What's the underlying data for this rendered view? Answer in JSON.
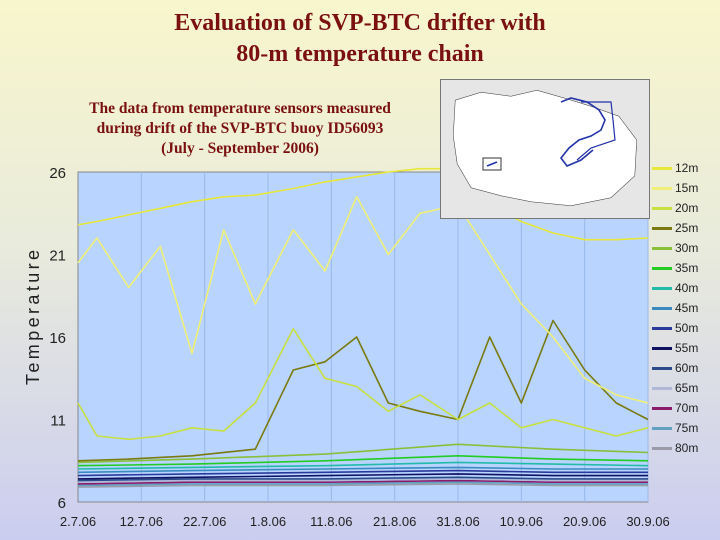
{
  "title_line1": "Evaluation of SVP-BTC drifter with",
  "title_line2": "80-m temperature chain",
  "subtitle_line1": "The data from temperature sensors measured",
  "subtitle_line2": "during drift of the SVP-BTC buoy ID56093",
  "subtitle_line3": "(July - September 2006)",
  "chart_data": {
    "type": "line",
    "ylabel": "Temperature",
    "xlabel": "",
    "x_ticks": [
      "2.7.06",
      "12.7.06",
      "22.7.06",
      "1.8.06",
      "11.8.06",
      "21.8.06",
      "31.8.06",
      "10.9.06",
      "20.9.06",
      "30.9.06"
    ],
    "xlim": [
      "2006-07-02",
      "2006-09-30"
    ],
    "y_ticks": [
      6,
      11,
      16,
      21,
      26
    ],
    "ylim": [
      6,
      26
    ],
    "grid": "vertical",
    "legend": "right",
    "series": [
      {
        "name": "12m",
        "color": "#e8e83a",
        "x": [
          "2006-07-02",
          "2006-07-05",
          "2006-07-10",
          "2006-07-15",
          "2006-07-20",
          "2006-07-25",
          "2006-07-30",
          "2006-08-05",
          "2006-08-10",
          "2006-08-15",
          "2006-08-20",
          "2006-08-25",
          "2006-08-31",
          "2006-09-05",
          "2006-09-10",
          "2006-09-15",
          "2006-09-20",
          "2006-09-25",
          "2006-09-30"
        ],
        "values": [
          22.8,
          23.0,
          23.4,
          23.8,
          24.2,
          24.5,
          24.6,
          25.0,
          25.4,
          25.7,
          26.0,
          26.2,
          26.2,
          24.0,
          23.0,
          22.3,
          21.9,
          21.9,
          22.0
        ]
      },
      {
        "name": "15m",
        "color": "#f0f078",
        "x": [
          "2006-07-02",
          "2006-07-05",
          "2006-07-10",
          "2006-07-15",
          "2006-07-20",
          "2006-07-25",
          "2006-07-30",
          "2006-08-05",
          "2006-08-10",
          "2006-08-15",
          "2006-08-20",
          "2006-08-25",
          "2006-08-31",
          "2006-09-05",
          "2006-09-10",
          "2006-09-15",
          "2006-09-20",
          "2006-09-25",
          "2006-09-30"
        ],
        "values": [
          20.5,
          22.0,
          19.0,
          21.5,
          15.0,
          22.5,
          18.0,
          22.5,
          20.0,
          24.5,
          21.0,
          23.5,
          24.0,
          21.0,
          18.0,
          16.0,
          13.5,
          12.5,
          12.0
        ]
      },
      {
        "name": "20m",
        "color": "#c8e040",
        "x": [
          "2006-07-02",
          "2006-07-05",
          "2006-07-10",
          "2006-07-15",
          "2006-07-20",
          "2006-07-25",
          "2006-07-30",
          "2006-08-05",
          "2006-08-10",
          "2006-08-15",
          "2006-08-20",
          "2006-08-25",
          "2006-08-31",
          "2006-09-05",
          "2006-09-10",
          "2006-09-15",
          "2006-09-20",
          "2006-09-25",
          "2006-09-30"
        ],
        "values": [
          12.0,
          10.0,
          9.8,
          10.0,
          10.5,
          10.3,
          12.0,
          16.5,
          13.5,
          13.0,
          11.5,
          12.5,
          11.0,
          12.0,
          10.5,
          11.0,
          10.5,
          10.0,
          10.5
        ]
      },
      {
        "name": "25m",
        "color": "#7a7a10",
        "x": [
          "2006-07-02",
          "2006-07-10",
          "2006-07-20",
          "2006-07-30",
          "2006-08-05",
          "2006-08-10",
          "2006-08-15",
          "2006-08-20",
          "2006-08-25",
          "2006-08-31",
          "2006-09-05",
          "2006-09-10",
          "2006-09-15",
          "2006-09-20",
          "2006-09-25",
          "2006-09-30"
        ],
        "values": [
          8.5,
          8.6,
          8.8,
          9.2,
          14.0,
          14.5,
          16.0,
          12.0,
          11.5,
          11.0,
          16.0,
          12.0,
          17.0,
          14.0,
          12.0,
          11.0
        ]
      },
      {
        "name": "30m",
        "color": "#8abf3a",
        "x": [
          "2006-07-02",
          "2006-07-20",
          "2006-08-10",
          "2006-08-31",
          "2006-09-15",
          "2006-09-30"
        ],
        "values": [
          8.4,
          8.6,
          8.9,
          9.5,
          9.2,
          9.0
        ]
      },
      {
        "name": "35m",
        "color": "#22cc22",
        "x": [
          "2006-07-02",
          "2006-07-20",
          "2006-08-10",
          "2006-08-31",
          "2006-09-15",
          "2006-09-30"
        ],
        "values": [
          8.2,
          8.3,
          8.5,
          8.8,
          8.6,
          8.5
        ]
      },
      {
        "name": "40m",
        "color": "#22bbaa",
        "x": [
          "2006-07-02",
          "2006-07-20",
          "2006-08-10",
          "2006-08-31",
          "2006-09-15",
          "2006-09-30"
        ],
        "values": [
          8.0,
          8.1,
          8.2,
          8.4,
          8.3,
          8.2
        ]
      },
      {
        "name": "45m",
        "color": "#3a8abf",
        "x": [
          "2006-07-02",
          "2006-07-20",
          "2006-08-10",
          "2006-08-31",
          "2006-09-15",
          "2006-09-30"
        ],
        "values": [
          7.8,
          7.9,
          8.0,
          8.1,
          8.0,
          8.0
        ]
      },
      {
        "name": "50m",
        "color": "#2a3a9a",
        "x": [
          "2006-07-02",
          "2006-07-20",
          "2006-08-10",
          "2006-08-31",
          "2006-09-15",
          "2006-09-30"
        ],
        "values": [
          7.6,
          7.7,
          7.8,
          7.9,
          7.8,
          7.8
        ]
      },
      {
        "name": "55m",
        "color": "#101060",
        "x": [
          "2006-07-02",
          "2006-07-20",
          "2006-08-10",
          "2006-08-31",
          "2006-09-15",
          "2006-09-30"
        ],
        "values": [
          7.4,
          7.5,
          7.6,
          7.7,
          7.6,
          7.6
        ]
      },
      {
        "name": "60m",
        "color": "#2a4a8a",
        "x": [
          "2006-07-02",
          "2006-07-20",
          "2006-08-10",
          "2006-08-31",
          "2006-09-15",
          "2006-09-30"
        ],
        "values": [
          7.3,
          7.4,
          7.4,
          7.5,
          7.4,
          7.4
        ]
      },
      {
        "name": "65m",
        "color": "#b0b8d8",
        "x": [
          "2006-07-02",
          "2006-07-20",
          "2006-08-10",
          "2006-08-31",
          "2006-09-15",
          "2006-09-30"
        ],
        "values": [
          7.2,
          7.3,
          7.3,
          7.4,
          7.3,
          7.3
        ]
      },
      {
        "name": "70m",
        "color": "#8a1a6a",
        "x": [
          "2006-07-02",
          "2006-07-20",
          "2006-08-10",
          "2006-08-31",
          "2006-09-15",
          "2006-09-30"
        ],
        "values": [
          7.1,
          7.2,
          7.2,
          7.3,
          7.2,
          7.2
        ]
      },
      {
        "name": "75m",
        "color": "#60a0c0",
        "x": [
          "2006-07-02",
          "2006-07-20",
          "2006-08-10",
          "2006-08-31",
          "2006-09-15",
          "2006-09-30"
        ],
        "values": [
          7.0,
          7.1,
          7.1,
          7.2,
          7.1,
          7.1
        ]
      },
      {
        "name": "80m",
        "color": "#9a9aa8",
        "x": [
          "2006-07-02",
          "2006-07-20",
          "2006-08-10",
          "2006-08-31",
          "2006-09-15",
          "2006-09-30"
        ],
        "values": [
          6.9,
          7.0,
          7.0,
          7.1,
          7.0,
          7.0
        ]
      }
    ]
  }
}
